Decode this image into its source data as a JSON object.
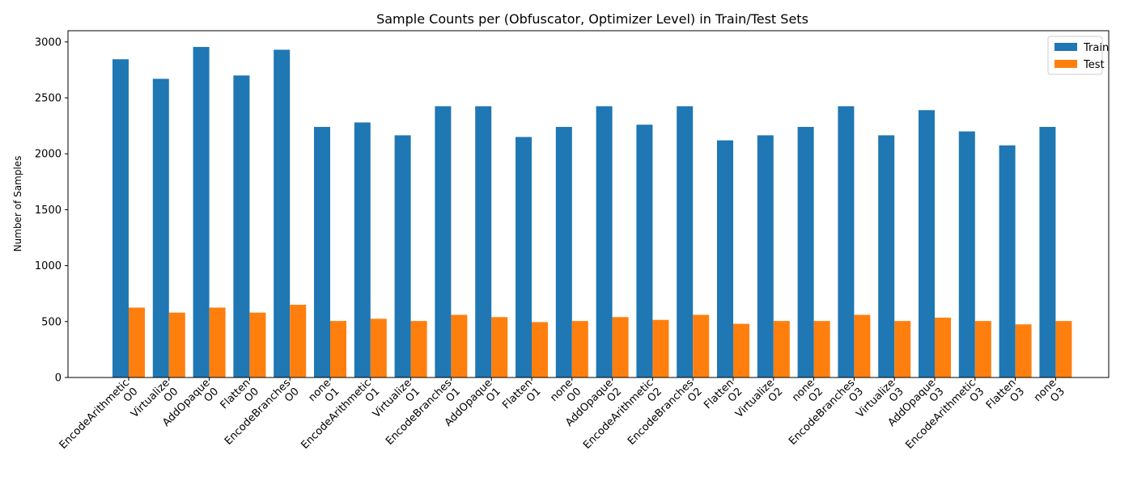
{
  "chart_data": {
    "type": "bar",
    "title": "Sample Counts per (Obfuscator, Optimizer Level) in Train/Test Sets",
    "xlabel": "",
    "ylabel": "Number of Samples",
    "ylim": [
      0,
      3100
    ],
    "yticks": [
      0,
      500,
      1000,
      1500,
      2000,
      2500,
      3000
    ],
    "grid": false,
    "legend_position": "top-right",
    "categories": [
      {
        "obfuscator": "EncodeArithmetic",
        "level": "O0"
      },
      {
        "obfuscator": "Virtualize",
        "level": "O0"
      },
      {
        "obfuscator": "AddOpaque",
        "level": "O0"
      },
      {
        "obfuscator": "Flatten",
        "level": "O0"
      },
      {
        "obfuscator": "EncodeBranches",
        "level": "O0"
      },
      {
        "obfuscator": "none",
        "level": "O1"
      },
      {
        "obfuscator": "EncodeArithmetic",
        "level": "O1"
      },
      {
        "obfuscator": "Virtualize",
        "level": "O1"
      },
      {
        "obfuscator": "EncodeBranches",
        "level": "O1"
      },
      {
        "obfuscator": "AddOpaque",
        "level": "O1"
      },
      {
        "obfuscator": "Flatten",
        "level": "O1"
      },
      {
        "obfuscator": "none",
        "level": "O0"
      },
      {
        "obfuscator": "AddOpaque",
        "level": "O2"
      },
      {
        "obfuscator": "EncodeArithmetic",
        "level": "O2"
      },
      {
        "obfuscator": "EncodeBranches",
        "level": "O2"
      },
      {
        "obfuscator": "Flatten",
        "level": "O2"
      },
      {
        "obfuscator": "Virtualize",
        "level": "O2"
      },
      {
        "obfuscator": "none",
        "level": "O2"
      },
      {
        "obfuscator": "EncodeBranches",
        "level": "O3"
      },
      {
        "obfuscator": "Virtualize",
        "level": "O3"
      },
      {
        "obfuscator": "AddOpaque",
        "level": "O3"
      },
      {
        "obfuscator": "EncodeArithmetic",
        "level": "O3"
      },
      {
        "obfuscator": "Flatten",
        "level": "O3"
      },
      {
        "obfuscator": "none",
        "level": "O3"
      }
    ],
    "series": [
      {
        "name": "Train",
        "color": "#1f77b4",
        "values": [
          2845,
          2670,
          2955,
          2700,
          2930,
          2240,
          2280,
          2165,
          2425,
          2425,
          2150,
          2240,
          2425,
          2260,
          2425,
          2120,
          2165,
          2240,
          2425,
          2165,
          2390,
          2200,
          2075,
          2240
        ]
      },
      {
        "name": "Test",
        "color": "#ff7f0e",
        "values": [
          625,
          580,
          625,
          580,
          650,
          505,
          525,
          505,
          560,
          540,
          495,
          505,
          540,
          515,
          560,
          480,
          505,
          505,
          560,
          505,
          535,
          505,
          475,
          505
        ]
      }
    ]
  }
}
